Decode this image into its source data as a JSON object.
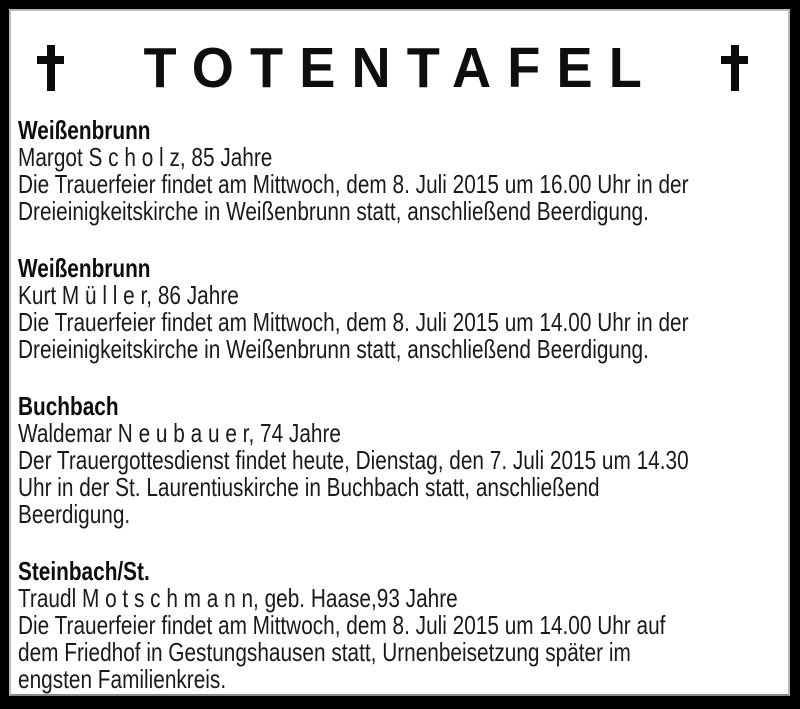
{
  "header": {
    "title": "TOTENTAFEL",
    "left_icon": "latin-cross",
    "right_icon": "latin-cross"
  },
  "entries": [
    {
      "town": "Weißenbrunn",
      "name": "Margot S c h o l z, 85 Jahre",
      "details": "Die Trauerfeier findet am Mittwoch, dem 8. Juli 2015 um 16.00 Uhr in der\nDreieinigkeitskirche in Weißenbrunn statt, anschließend Beerdigung."
    },
    {
      "town": "Weißenbrunn",
      "name": "Kurt M ü l l e r, 86 Jahre",
      "details": "Die Trauerfeier findet am Mittwoch, dem 8. Juli 2015 um 14.00 Uhr in der\nDreieinigkeitskirche in Weißenbrunn statt, anschließend Beerdigung."
    },
    {
      "town": "Buchbach",
      "name": "Waldemar N e u b a u e r, 74 Jahre",
      "details": "Der Trauergottesdienst findet heute, Dienstag, den 7. Juli 2015 um 14.30\nUhr in der St. Laurentiuskirche in Buchbach statt, anschließend\nBeerdigung."
    },
    {
      "town": "Steinbach/St.",
      "name": "Traudl M o t s c h m a n n, geb. Haase,93 Jahre",
      "details": "Die Trauerfeier findet am Mittwoch, dem 8. Juli 2015 um 14.00 Uhr auf\ndem Friedhof in Gestungshausen statt, Urnenbeisetzung später im\nengsten Familienkreis."
    }
  ],
  "colors": {
    "frame": "#000000",
    "panel": "#ffffff",
    "panel_border": "#b9b9b9",
    "text": "#1a1a1a"
  }
}
